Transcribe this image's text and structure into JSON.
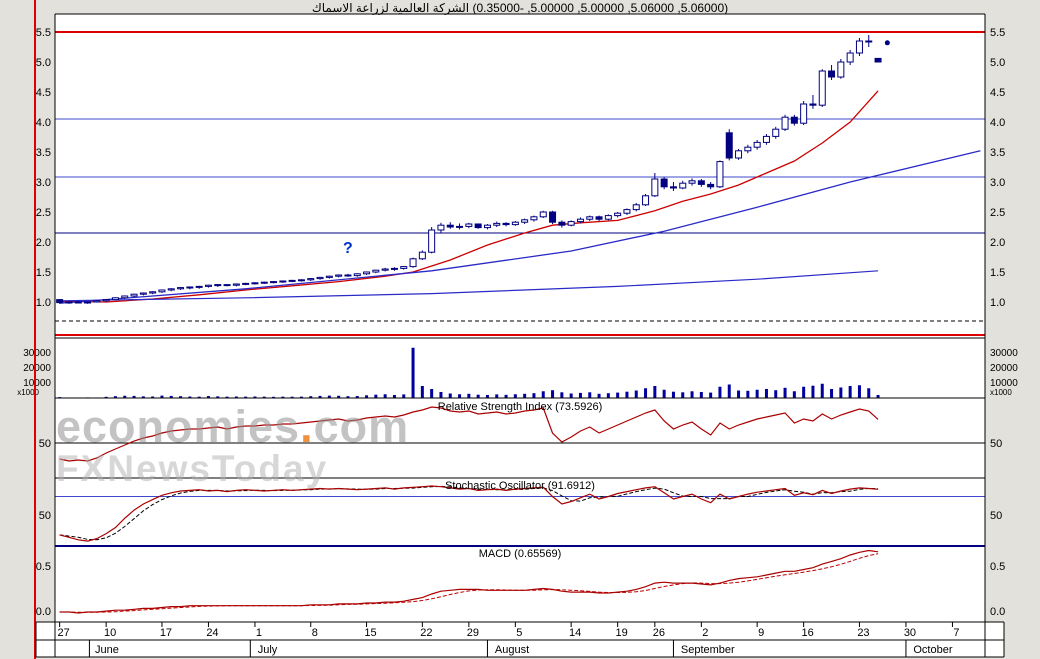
{
  "title": "(5.06000, 5.06000, 5.00000, 5.00000, -0.35000) الشركة العالمية لزراعة الاسماك",
  "watermark": {
    "brand": "economies",
    "dot": ".",
    "tld": "com",
    "subbrand": "FXNewsToday"
  },
  "annotation": {
    "text": "?",
    "day": 31,
    "price": 1.82
  },
  "last_dot": {
    "day": 89,
    "price": 5.32
  },
  "colors": {
    "margin": "#e3e1db",
    "panel": "#ffffff",
    "candle": "#000080",
    "up": "#ffffff",
    "volume": "#0000a0",
    "red": "#dd0000",
    "navy": "#000080",
    "annotation": "#0033cc"
  },
  "chart_data": [
    {
      "id": "price",
      "type": "candlestick",
      "ylim": [
        0.4,
        5.8
      ],
      "yticks": [
        1.0,
        1.5,
        2.0,
        2.5,
        3.0,
        3.5,
        4.0,
        4.5,
        5.0,
        5.5
      ],
      "hlines": [
        {
          "value": 5.5,
          "color": "#dd0000",
          "width": 2,
          "style": "solid"
        },
        {
          "value": 4.05,
          "color": "#3f48cc",
          "width": 1,
          "style": "solid"
        },
        {
          "value": 3.08,
          "color": "#3f48cc",
          "width": 1,
          "style": "solid"
        },
        {
          "value": 2.15,
          "color": "#000080",
          "width": 1,
          "style": "solid"
        },
        {
          "value": 0.68,
          "color": "#000000",
          "width": 1,
          "style": "dashed"
        },
        {
          "value": 0.45,
          "color": "#dd0000",
          "width": 2,
          "style": "solid"
        }
      ],
      "overlays": [
        {
          "name": "fast-ma-line",
          "color": "#cc0000",
          "width": 1.3,
          "style": "solid",
          "points": [
            [
              0,
              1.01
            ],
            [
              5,
              1.0
            ],
            [
              10,
              1.05
            ],
            [
              15,
              1.12
            ],
            [
              20,
              1.2
            ],
            [
              25,
              1.27
            ],
            [
              30,
              1.34
            ],
            [
              35,
              1.43
            ],
            [
              38,
              1.5
            ],
            [
              42,
              1.7
            ],
            [
              46,
              1.95
            ],
            [
              50,
              2.15
            ],
            [
              53,
              2.28
            ],
            [
              56,
              2.32
            ],
            [
              60,
              2.36
            ],
            [
              64,
              2.52
            ],
            [
              67,
              2.68
            ],
            [
              70,
              2.8
            ],
            [
              73,
              2.95
            ],
            [
              76,
              3.15
            ],
            [
              79,
              3.35
            ],
            [
              82,
              3.65
            ],
            [
              85,
              4.0
            ],
            [
              88,
              4.52
            ]
          ]
        },
        {
          "name": "trend-line",
          "color": "#2a2ac8",
          "width": 1.3,
          "style": "solid",
          "points": [
            [
              0,
              0.98
            ],
            [
              20,
              1.22
            ],
            [
              40,
              1.52
            ],
            [
              55,
              1.85
            ],
            [
              65,
              2.18
            ],
            [
              75,
              2.58
            ],
            [
              85,
              3.0
            ],
            [
              99,
              3.52
            ]
          ]
        },
        {
          "name": "slow-ma-line",
          "color": "#2a2ac8",
          "width": 1.2,
          "style": "solid",
          "points": [
            [
              0,
              1.02
            ],
            [
              20,
              1.07
            ],
            [
              40,
              1.14
            ],
            [
              60,
              1.26
            ],
            [
              75,
              1.38
            ],
            [
              88,
              1.52
            ]
          ]
        }
      ],
      "candles": [
        [
          1.04,
          1.05,
          0.97,
          0.99
        ],
        [
          0.99,
          1.01,
          0.97,
          1.0
        ],
        [
          1.0,
          1.02,
          0.98,
          0.99
        ],
        [
          0.99,
          1.01,
          0.97,
          1.0
        ],
        [
          1.0,
          1.03,
          0.99,
          1.02
        ],
        [
          1.02,
          1.05,
          1.0,
          1.04
        ],
        [
          1.04,
          1.08,
          1.03,
          1.07
        ],
        [
          1.07,
          1.11,
          1.05,
          1.1
        ],
        [
          1.1,
          1.14,
          1.08,
          1.13
        ],
        [
          1.13,
          1.16,
          1.11,
          1.15
        ],
        [
          1.15,
          1.18,
          1.13,
          1.17
        ],
        [
          1.17,
          1.21,
          1.15,
          1.2
        ],
        [
          1.2,
          1.23,
          1.18,
          1.22
        ],
        [
          1.22,
          1.25,
          1.2,
          1.24
        ],
        [
          1.24,
          1.26,
          1.21,
          1.25
        ],
        [
          1.25,
          1.27,
          1.22,
          1.26
        ],
        [
          1.26,
          1.29,
          1.24,
          1.28
        ],
        [
          1.28,
          1.3,
          1.25,
          1.29
        ],
        [
          1.29,
          1.3,
          1.26,
          1.28
        ],
        [
          1.28,
          1.31,
          1.26,
          1.3
        ],
        [
          1.3,
          1.32,
          1.28,
          1.31
        ],
        [
          1.31,
          1.33,
          1.29,
          1.32
        ],
        [
          1.32,
          1.34,
          1.3,
          1.33
        ],
        [
          1.33,
          1.35,
          1.31,
          1.34
        ],
        [
          1.34,
          1.36,
          1.32,
          1.35
        ],
        [
          1.35,
          1.37,
          1.33,
          1.36
        ],
        [
          1.36,
          1.38,
          1.34,
          1.37
        ],
        [
          1.37,
          1.4,
          1.35,
          1.39
        ],
        [
          1.39,
          1.42,
          1.37,
          1.41
        ],
        [
          1.41,
          1.44,
          1.39,
          1.43
        ],
        [
          1.43,
          1.46,
          1.41,
          1.45
        ],
        [
          1.45,
          1.47,
          1.42,
          1.44
        ],
        [
          1.44,
          1.48,
          1.42,
          1.47
        ],
        [
          1.47,
          1.51,
          1.45,
          1.5
        ],
        [
          1.5,
          1.54,
          1.48,
          1.53
        ],
        [
          1.53,
          1.57,
          1.51,
          1.55
        ],
        [
          1.55,
          1.58,
          1.52,
          1.56
        ],
        [
          1.56,
          1.6,
          1.54,
          1.59
        ],
        [
          1.59,
          1.74,
          1.57,
          1.72
        ],
        [
          1.72,
          1.86,
          1.7,
          1.83
        ],
        [
          1.83,
          2.25,
          1.81,
          2.2
        ],
        [
          2.2,
          2.32,
          2.15,
          2.28
        ],
        [
          2.28,
          2.33,
          2.22,
          2.25
        ],
        [
          2.25,
          2.31,
          2.21,
          2.26
        ],
        [
          2.26,
          2.32,
          2.23,
          2.3
        ],
        [
          2.3,
          2.31,
          2.22,
          2.24
        ],
        [
          2.24,
          2.3,
          2.21,
          2.28
        ],
        [
          2.28,
          2.34,
          2.25,
          2.31
        ],
        [
          2.31,
          2.33,
          2.26,
          2.29
        ],
        [
          2.29,
          2.35,
          2.27,
          2.33
        ],
        [
          2.33,
          2.39,
          2.3,
          2.37
        ],
        [
          2.37,
          2.44,
          2.34,
          2.42
        ],
        [
          2.42,
          2.52,
          2.4,
          2.5
        ],
        [
          2.5,
          2.52,
          2.3,
          2.33
        ],
        [
          2.33,
          2.36,
          2.24,
          2.28
        ],
        [
          2.28,
          2.36,
          2.26,
          2.34
        ],
        [
          2.34,
          2.41,
          2.31,
          2.38
        ],
        [
          2.38,
          2.44,
          2.35,
          2.42
        ],
        [
          2.42,
          2.44,
          2.35,
          2.38
        ],
        [
          2.38,
          2.46,
          2.36,
          2.44
        ],
        [
          2.44,
          2.5,
          2.41,
          2.48
        ],
        [
          2.48,
          2.56,
          2.45,
          2.54
        ],
        [
          2.54,
          2.65,
          2.51,
          2.62
        ],
        [
          2.62,
          2.8,
          2.6,
          2.77
        ],
        [
          2.77,
          3.15,
          2.75,
          3.05
        ],
        [
          3.05,
          3.08,
          2.88,
          2.92
        ],
        [
          2.92,
          3.0,
          2.85,
          2.9
        ],
        [
          2.9,
          3.02,
          2.88,
          2.98
        ],
        [
          2.98,
          3.06,
          2.94,
          3.02
        ],
        [
          3.02,
          3.05,
          2.92,
          2.96
        ],
        [
          2.96,
          3.0,
          2.88,
          2.92
        ],
        [
          2.92,
          3.36,
          2.9,
          3.34
        ],
        [
          3.82,
          3.88,
          3.36,
          3.4
        ],
        [
          3.4,
          3.55,
          3.37,
          3.52
        ],
        [
          3.52,
          3.62,
          3.48,
          3.58
        ],
        [
          3.58,
          3.7,
          3.54,
          3.66
        ],
        [
          3.66,
          3.8,
          3.62,
          3.76
        ],
        [
          3.76,
          3.92,
          3.72,
          3.88
        ],
        [
          3.88,
          4.12,
          3.85,
          4.08
        ],
        [
          4.08,
          4.12,
          3.94,
          3.98
        ],
        [
          3.98,
          4.35,
          3.95,
          4.3
        ],
        [
          4.3,
          4.45,
          4.22,
          4.28
        ],
        [
          4.28,
          4.88,
          4.25,
          4.85
        ],
        [
          4.85,
          4.95,
          4.7,
          4.75
        ],
        [
          4.75,
          5.05,
          4.72,
          5.0
        ],
        [
          5.0,
          5.2,
          4.95,
          5.15
        ],
        [
          5.15,
          5.4,
          5.1,
          5.35
        ],
        [
          5.35,
          5.45,
          5.25,
          5.35
        ],
        [
          5.06,
          5.06,
          5.0,
          5.0
        ]
      ]
    },
    {
      "id": "volume",
      "type": "bar",
      "ylim": [
        0,
        40000
      ],
      "yticks": [
        10000,
        20000,
        30000
      ],
      "unit_label": "x1000",
      "values": [
        600,
        300,
        250,
        400,
        350,
        800,
        1200,
        1500,
        1400,
        1100,
        1000,
        1600,
        1400,
        1200,
        1000,
        900,
        1300,
        1100,
        900,
        1000,
        900,
        1000,
        900,
        800,
        900,
        850,
        900,
        1200,
        1400,
        1600,
        1500,
        1200,
        1300,
        1800,
        2200,
        2500,
        2000,
        2400,
        33500,
        8000,
        6000,
        4000,
        3000,
        2500,
        2800,
        2200,
        2000,
        2400,
        2100,
        2500,
        2800,
        3200,
        4500,
        5200,
        3800,
        3000,
        3400,
        3800,
        2800,
        3200,
        3600,
        4200,
        5000,
        6500,
        8000,
        5500,
        4200,
        3800,
        4500,
        4000,
        3600,
        7500,
        9000,
        5000,
        4800,
        5500,
        6000,
        5200,
        6800,
        4500,
        7500,
        8200,
        9500,
        6000,
        7000,
        8000,
        8500,
        6500,
        2000
      ]
    },
    {
      "id": "rsi",
      "type": "line",
      "label": "Relative Strength Index (73.5926)",
      "color": "#aa0000",
      "ylim": [
        15,
        95
      ],
      "yticks": [
        50
      ],
      "hlines": [
        {
          "value": 50,
          "color": "#000000",
          "width": 1
        }
      ],
      "values": [
        34,
        32,
        33,
        32,
        35,
        40,
        44,
        48,
        52,
        55,
        57,
        60,
        62,
        63,
        64,
        64,
        65,
        66,
        64,
        66,
        67,
        67,
        68,
        68,
        69,
        69,
        70,
        71,
        72,
        73,
        74,
        72,
        73,
        75,
        76,
        77,
        76,
        78,
        81,
        83,
        86,
        85,
        82,
        81,
        82,
        79,
        80,
        81,
        79,
        80,
        82,
        83,
        85,
        60,
        51,
        56,
        62,
        66,
        60,
        64,
        68,
        72,
        76,
        80,
        83,
        72,
        64,
        68,
        71,
        64,
        58,
        70,
        64,
        68,
        71,
        74,
        76,
        78,
        80,
        70,
        74,
        72,
        79,
        74,
        78,
        81,
        84,
        82,
        73.5926
      ]
    },
    {
      "id": "stochastic",
      "type": "line",
      "label": "Stochastic Oscillator (91.6912)",
      "color": "#aa0000",
      "signal_color": "#000000",
      "signal_window": 3,
      "ylim": [
        0,
        110
      ],
      "yticks": [
        50
      ],
      "hlines": [
        {
          "value": 80,
          "color": "#3f48cc",
          "width": 1
        }
      ],
      "values": [
        18,
        14,
        10,
        8,
        12,
        20,
        30,
        45,
        58,
        68,
        75,
        82,
        86,
        89,
        90,
        91,
        89,
        90,
        88,
        90,
        91,
        90,
        89,
        90,
        91,
        90,
        91,
        92,
        93,
        92,
        93,
        92,
        91,
        92,
        93,
        94,
        92,
        94,
        95,
        96,
        97,
        96,
        94,
        92,
        93,
        90,
        91,
        92,
        90,
        92,
        93,
        94,
        95,
        80,
        68,
        72,
        78,
        84,
        76,
        80,
        85,
        88,
        91,
        94,
        96,
        86,
        76,
        80,
        84,
        76,
        70,
        84,
        76,
        80,
        84,
        87,
        89,
        91,
        93,
        82,
        86,
        83,
        90,
        85,
        89,
        92,
        94,
        93,
        91.6912
      ]
    },
    {
      "id": "macd",
      "type": "line",
      "label": "MACD (0.65569)",
      "color": "#aa0000",
      "signal_color": "#bb0000",
      "signal_window": 5,
      "ylim": [
        -0.12,
        0.72
      ],
      "yticks": [
        0.5,
        0.0
      ],
      "tick_format": "fixed1",
      "hlines": [],
      "values": [
        -0.01,
        -0.01,
        -0.02,
        -0.01,
        -0.01,
        0.0,
        0.01,
        0.01,
        0.02,
        0.03,
        0.03,
        0.04,
        0.05,
        0.05,
        0.06,
        0.06,
        0.06,
        0.06,
        0.06,
        0.06,
        0.06,
        0.06,
        0.06,
        0.06,
        0.06,
        0.06,
        0.06,
        0.07,
        0.07,
        0.07,
        0.08,
        0.08,
        0.08,
        0.09,
        0.09,
        0.1,
        0.1,
        0.11,
        0.13,
        0.15,
        0.19,
        0.22,
        0.23,
        0.24,
        0.24,
        0.24,
        0.23,
        0.23,
        0.23,
        0.23,
        0.23,
        0.24,
        0.25,
        0.24,
        0.22,
        0.21,
        0.21,
        0.21,
        0.2,
        0.2,
        0.21,
        0.22,
        0.24,
        0.27,
        0.31,
        0.32,
        0.31,
        0.31,
        0.31,
        0.3,
        0.29,
        0.31,
        0.34,
        0.36,
        0.37,
        0.38,
        0.4,
        0.42,
        0.44,
        0.44,
        0.46,
        0.48,
        0.52,
        0.55,
        0.58,
        0.62,
        0.65,
        0.67,
        0.65569
      ]
    }
  ],
  "xaxis": {
    "ticks": [
      {
        "label": "27",
        "day": 0
      },
      {
        "label": "10",
        "day": 5
      },
      {
        "label": "17",
        "day": 11
      },
      {
        "label": "24",
        "day": 16
      },
      {
        "label": "1",
        "day": 21
      },
      {
        "label": "8",
        "day": 27
      },
      {
        "label": "15",
        "day": 33
      },
      {
        "label": "22",
        "day": 39
      },
      {
        "label": "29",
        "day": 44
      },
      {
        "label": "5",
        "day": 49
      },
      {
        "label": "14",
        "day": 55
      },
      {
        "label": "19",
        "day": 60
      },
      {
        "label": "26",
        "day": 64
      },
      {
        "label": "2",
        "day": 69
      },
      {
        "label": "9",
        "day": 75
      },
      {
        "label": "16",
        "day": 80
      },
      {
        "label": "23",
        "day": 86
      },
      {
        "label": "30",
        "day": 91
      },
      {
        "label": "7",
        "day": 96
      }
    ],
    "months": [
      {
        "label": "June",
        "day": 3.8
      },
      {
        "label": "July",
        "day": 21.3
      },
      {
        "label": "August",
        "day": 46.8
      },
      {
        "label": "September",
        "day": 66.8
      },
      {
        "label": "October",
        "day": 91.8
      }
    ],
    "separators": [
      3.2,
      20.5,
      46.0,
      66.0,
      91.0
    ]
  }
}
